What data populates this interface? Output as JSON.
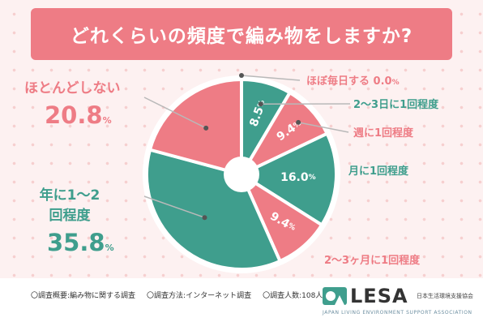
{
  "title": "どれくらいの頻度で編み物をしますか?",
  "chart_data": {
    "type": "pie",
    "slices": [
      {
        "label": "ほぼ毎日する",
        "value": 0.0,
        "value_text": "0.0",
        "unit": "%",
        "color": "#ee7c85"
      },
      {
        "label": "2〜3日に1回程度",
        "value": 8.5,
        "value_text": "8.5",
        "unit": "%",
        "color": "#3f9e8d"
      },
      {
        "label": "週に1回程度",
        "value": 9.4,
        "value_text": "9.4",
        "unit": "%",
        "color": "#ee7c85"
      },
      {
        "label": "月に1回程度",
        "value": 16.0,
        "value_text": "16.0",
        "unit": "%",
        "color": "#3f9e8d"
      },
      {
        "label": "2〜3ヶ月に1回程度",
        "value": 9.4,
        "value_text": "9.4",
        "unit": "%",
        "color": "#ee7c85"
      },
      {
        "label": "年に1〜2回程度",
        "value": 35.8,
        "value_text": "35.8",
        "unit": "%",
        "color": "#3f9e8d"
      },
      {
        "label": "ほとんどしない",
        "value": 20.8,
        "value_text": "20.8",
        "unit": "%",
        "color": "#ee7c85"
      }
    ]
  },
  "footer": {
    "notes": [
      "〇調査概要:編み物に関する調査",
      "〇調査方法:インターネット調査",
      "〇調査人数:108人"
    ]
  },
  "logo": {
    "name": "LESA",
    "org": "日本生活環境支援協会",
    "english": "JAPAN LIVING ENVIRONMENT SUPPORT ASSOCIATION"
  }
}
